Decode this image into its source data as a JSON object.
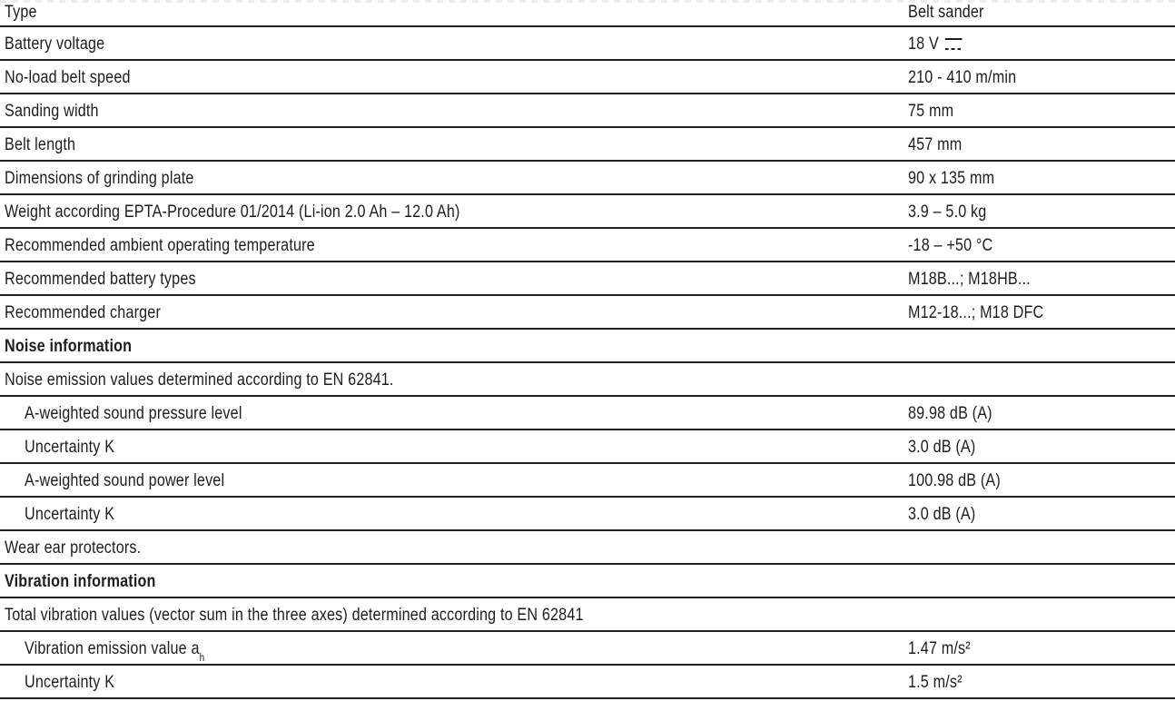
{
  "colors": {
    "text": "#1d1d1d",
    "rule_line": "#1f1f1f",
    "background": "#ffffff",
    "top_artifact": "#ebece9"
  },
  "table": {
    "rows": [
      {
        "label": "Type",
        "value": "Belt sander"
      },
      {
        "label": "Battery voltage",
        "value": "18 V",
        "value_icon": "dc-current-icon"
      },
      {
        "label": "No-load belt speed",
        "value": "210 - 410 m/min"
      },
      {
        "label": "Sanding width",
        "value": "75 mm"
      },
      {
        "label": "Belt length",
        "value": "457 mm"
      },
      {
        "label": "Dimensions of grinding plate",
        "value": "90 x 135 mm"
      },
      {
        "label": "Weight according EPTA-Procedure 01/2014 (Li-ion 2.0 Ah – 12.0 Ah)",
        "value": "3.9 – 5.0 kg"
      },
      {
        "label": "Recommended ambient operating temperature",
        "value": "-18 – +50 °C"
      },
      {
        "label": "Recommended battery types",
        "value": "M18B...; M18HB..."
      },
      {
        "label": "Recommended charger",
        "value": "M12-18...; M18 DFC"
      },
      {
        "label": "Noise information",
        "type": "section"
      },
      {
        "label": "Noise emission values determined according to EN 62841.",
        "type": "note"
      },
      {
        "label": "A-weighted sound pressure level",
        "value": "89.98 dB (A)",
        "indent": true
      },
      {
        "label": "Uncertainty K",
        "value": "3.0 dB (A)",
        "indent": true
      },
      {
        "label": "A-weighted sound power level",
        "value": "100.98 dB (A)",
        "indent": true
      },
      {
        "label": "Uncertainty K",
        "value": "3.0 dB (A)",
        "indent": true
      },
      {
        "label": "Wear ear protectors.",
        "type": "note"
      },
      {
        "label": "Vibration information",
        "type": "section"
      },
      {
        "label": "Total vibration values (vector sum in the three axes) determined according to EN 62841",
        "type": "note"
      },
      {
        "label": "Vibration emission value a",
        "label_sub": "h",
        "value": "1.47 m/s²",
        "indent": true
      },
      {
        "label": "Uncertainty K",
        "value": "1.5 m/s²",
        "indent": true
      }
    ]
  }
}
